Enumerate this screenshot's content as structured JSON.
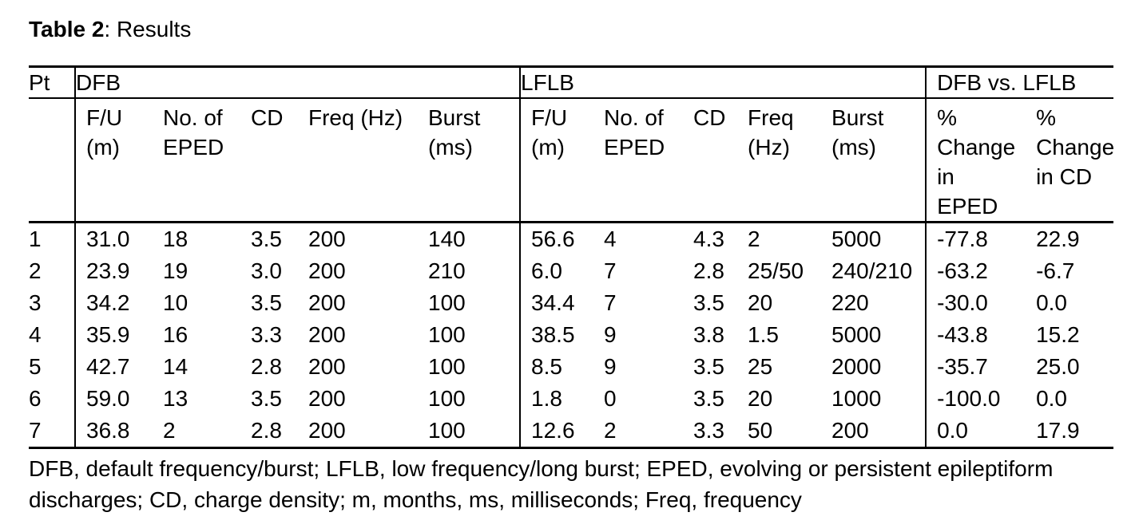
{
  "caption": {
    "label": "Table 2",
    "text": ": Results"
  },
  "table": {
    "group_headers": {
      "pt": "Pt",
      "dfb": "DFB",
      "lflb": "LFLB",
      "comparison": "DFB vs. LFLB"
    },
    "sub_headers": {
      "dfb": [
        "F/U\n(m)",
        "No. of\nEPED",
        "CD",
        "Freq (Hz)",
        "Burst\n(ms)"
      ],
      "lflb": [
        "F/U\n(m)",
        "No. of\nEPED",
        "CD",
        "Freq\n(Hz)",
        "Burst\n(ms)"
      ],
      "comparison": [
        "%\nChange\nin\nEPED",
        "%\nChange\nin CD"
      ]
    },
    "rows": [
      {
        "pt": "1",
        "dfb": [
          "31.0",
          "18",
          "3.5",
          "200",
          "140"
        ],
        "lflb": [
          "56.6",
          "4",
          "4.3",
          "2",
          "5000"
        ],
        "comparison": [
          "-77.8",
          "22.9"
        ]
      },
      {
        "pt": "2",
        "dfb": [
          "23.9",
          "19",
          "3.0",
          "200",
          "210"
        ],
        "lflb": [
          "6.0",
          "7",
          "2.8",
          "25/50",
          "240/210"
        ],
        "comparison": [
          "-63.2",
          "-6.7"
        ]
      },
      {
        "pt": "3",
        "dfb": [
          "34.2",
          "10",
          "3.5",
          "200",
          "100"
        ],
        "lflb": [
          "34.4",
          "7",
          "3.5",
          "20",
          "220"
        ],
        "comparison": [
          "-30.0",
          "0.0"
        ]
      },
      {
        "pt": "4",
        "dfb": [
          "35.9",
          "16",
          "3.3",
          "200",
          "100"
        ],
        "lflb": [
          "38.5",
          "9",
          "3.8",
          "1.5",
          "5000"
        ],
        "comparison": [
          "-43.8",
          "15.2"
        ]
      },
      {
        "pt": "5",
        "dfb": [
          "42.7",
          "14",
          "2.8",
          "200",
          "100"
        ],
        "lflb": [
          "8.5",
          "9",
          "3.5",
          "25",
          "2000"
        ],
        "comparison": [
          "-35.7",
          "25.0"
        ]
      },
      {
        "pt": "6",
        "dfb": [
          "59.0",
          "13",
          "3.5",
          "200",
          "100"
        ],
        "lflb": [
          "1.8",
          "0",
          "3.5",
          "20",
          "1000"
        ],
        "comparison": [
          "-100.0",
          "0.0"
        ]
      },
      {
        "pt": "7",
        "dfb": [
          "36.8",
          "2",
          "2.8",
          "200",
          "100"
        ],
        "lflb": [
          "12.6",
          "2",
          "3.3",
          "50",
          "200"
        ],
        "comparison": [
          "0.0",
          "17.9"
        ]
      }
    ]
  },
  "footnote": {
    "lines": [
      "DFB, default frequency/burst; LFLB, low frequency/long burst; EPED, evolving or persistent epileptiform",
      "discharges; CD, charge density; m, months, ms, milliseconds; Freq, frequency"
    ]
  }
}
